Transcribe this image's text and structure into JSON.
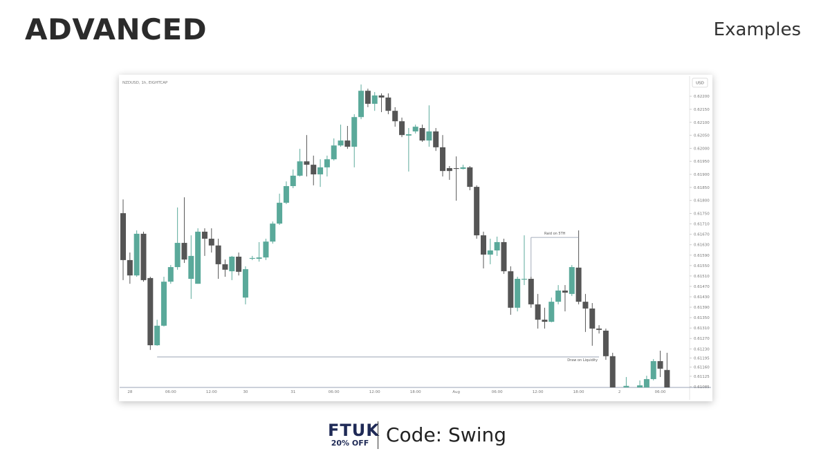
{
  "header": {
    "title": "ADVANCED",
    "subtitle": "Examples"
  },
  "footer": {
    "brand": "FTUK",
    "offer": "20% OFF",
    "code": "Code: Swing"
  },
  "chart_data": {
    "type": "candlestick",
    "title": "NZDUSD, 1h, EIGHTCAP",
    "currency": "USD",
    "colors": {
      "up": "#5aa99a",
      "down": "#555555"
    },
    "categories": [
      null,
      "28",
      null,
      null,
      null,
      null,
      null,
      "06:00",
      null,
      null,
      null,
      null,
      null,
      "12:00",
      null,
      null,
      null,
      null,
      "30",
      null,
      null,
      null,
      null,
      null,
      null,
      "31",
      null,
      null,
      null,
      null,
      null,
      "06:00",
      null,
      null,
      null,
      null,
      null,
      "12:00",
      null,
      null,
      null,
      null,
      null,
      "18:00",
      null,
      null,
      null,
      null,
      null,
      "Aug",
      null,
      null,
      null,
      null,
      null,
      "06:00",
      null,
      null,
      null,
      null,
      null,
      "12:00",
      null,
      null,
      null,
      null,
      null,
      "18:00",
      null,
      null,
      null,
      null,
      null,
      "2",
      null,
      null,
      null,
      null,
      null,
      "06:00",
      null
    ],
    "open": [
      0.61751,
      0.61571,
      0.61512,
      0.61672,
      0.61502,
      0.61244,
      0.61319,
      0.61488,
      0.61544,
      0.61637,
      0.61499,
      0.6148,
      0.6168,
      0.61653,
      0.61627,
      0.61555,
      0.61528,
      0.61584,
      0.61427,
      0.61576,
      0.61576,
      0.61581,
      0.61642,
      0.61711,
      0.61791,
      0.61855,
      0.61895,
      0.6195,
      0.61937,
      0.619,
      0.61927,
      0.61958,
      0.62011,
      0.6203,
      0.62006,
      0.6212,
      0.62221,
      0.62171,
      0.62203,
      0.62195,
      0.62144,
      0.62104,
      0.62049,
      0.62065,
      0.62078,
      0.6203,
      0.62065,
      0.62004,
      0.61924,
      0.61924,
      0.61921,
      0.61927,
      0.61852,
      0.61666,
      0.61592,
      0.61608,
      0.6164,
      0.61528,
      0.61388,
      0.61496,
      0.61499,
      0.61401,
      0.61342,
      0.61334,
      0.61411,
      0.61454,
      0.61441,
      0.61542,
      0.61411,
      0.61385,
      0.61308,
      0.613,
      0.61202,
      null,
      0.61082,
      null,
      0.61082,
      0.61082,
      0.61114,
      0.61183,
      0.61149
    ],
    "high": [
      0.61804,
      0.616,
      0.61685,
      0.6168,
      0.61507,
      0.61342,
      0.61507,
      0.61552,
      0.61773,
      0.61812,
      0.61666,
      0.61693,
      0.61693,
      0.61693,
      0.61653,
      0.61573,
      0.61587,
      0.616,
      0.61547,
      0.61587,
      0.6164,
      0.61653,
      0.61719,
      0.61826,
      0.61873,
      0.61919,
      0.61998,
      0.62051,
      0.61972,
      0.61958,
      0.61972,
      0.62038,
      0.62091,
      0.62086,
      0.62131,
      0.62245,
      0.62229,
      0.62216,
      0.62211,
      0.62211,
      0.62158,
      0.62118,
      0.62078,
      0.62091,
      0.62091,
      0.62165,
      0.62078,
      0.62051,
      0.61932,
      0.61969,
      0.61937,
      0.61932,
      0.61858,
      0.6168,
      0.61653,
      0.61661,
      0.61653,
      0.61547,
      0.61507,
      0.61666,
      0.61507,
      0.61441,
      0.61388,
      0.61427,
      0.61475,
      0.61475,
      0.61552,
      0.61685,
      0.61441,
      0.61406,
      0.61321,
      0.61308,
      0.61215,
      null,
      0.61122,
      null,
      0.61109,
      0.61127,
      0.61191,
      0.61223,
      0.61215
    ],
    "low": [
      0.61494,
      0.6148,
      0.61507,
      0.61488,
      0.61226,
      0.61242,
      0.61316,
      0.6148,
      0.61534,
      0.6156,
      0.61422,
      0.6148,
      0.61587,
      0.616,
      0.61499,
      0.61507,
      0.61494,
      0.61512,
      0.61401,
      0.61571,
      0.61565,
      0.61571,
      0.61634,
      0.61706,
      0.61786,
      0.61847,
      0.61892,
      0.61892,
      0.61858,
      0.61852,
      0.61892,
      0.61953,
      0.62006,
      0.61998,
      0.61927,
      0.62112,
      0.62158,
      0.62144,
      0.62139,
      0.62131,
      0.62083,
      0.62043,
      0.61911,
      0.62057,
      0.62025,
      0.62006,
      0.6199,
      0.61892,
      0.61879,
      0.61799,
      0.61919,
      0.61839,
      0.61653,
      0.61539,
      0.61555,
      0.61587,
      0.61518,
      0.61361,
      0.61374,
      0.61475,
      0.61388,
      0.61308,
      0.61308,
      0.61332,
      0.61401,
      0.61374,
      0.61433,
      0.61401,
      0.61295,
      0.61242,
      0.61289,
      0.61188,
      0.61056,
      null,
      0.61077,
      null,
      0.61077,
      0.61077,
      0.61109,
      0.61122,
      0.61069
    ],
    "close": [
      0.61571,
      0.61512,
      0.61672,
      0.61494,
      0.61244,
      0.61319,
      0.61488,
      0.61544,
      0.61637,
      0.61573,
      0.61587,
      0.6168,
      0.61653,
      0.61627,
      0.61555,
      0.61534,
      0.61584,
      0.61526,
      0.61536,
      0.61579,
      0.61581,
      0.61642,
      0.61711,
      0.61791,
      0.61855,
      0.61895,
      0.6195,
      0.61937,
      0.619,
      0.61927,
      0.61958,
      0.62011,
      0.6203,
      0.62006,
      0.6212,
      0.62221,
      0.62171,
      0.62203,
      0.62195,
      0.62144,
      0.62104,
      0.62051,
      0.62054,
      0.62083,
      0.6203,
      0.62065,
      0.62004,
      0.61913,
      0.61913,
      0.61921,
      0.61927,
      0.61852,
      0.61666,
      0.61592,
      0.61608,
      0.6164,
      0.61528,
      0.61388,
      0.61499,
      0.61499,
      0.61401,
      0.61342,
      0.61334,
      0.61411,
      0.61454,
      0.61446,
      0.61544,
      0.61411,
      0.61385,
      0.61308,
      0.61303,
      0.61202,
      0.61077,
      null,
      0.61088,
      null,
      0.6109,
      0.61114,
      0.61183,
      0.61154,
      0.61082
    ],
    "ylim": [
      0.61082,
      0.62272
    ],
    "yticks": [
      {
        "value": 0.622,
        "label": "0.62200"
      },
      {
        "value": 0.6215,
        "label": "0.62150"
      },
      {
        "value": 0.621,
        "label": "0.62100"
      },
      {
        "value": 0.6205,
        "label": "0.62050"
      },
      {
        "value": 0.62,
        "label": "0.62000"
      },
      {
        "value": 0.6195,
        "label": "0.61950"
      },
      {
        "value": 0.619,
        "label": "0.61900"
      },
      {
        "value": 0.6185,
        "label": "0.61850"
      },
      {
        "value": 0.618,
        "label": "0.61800"
      },
      {
        "value": 0.6175,
        "label": "0.61750"
      },
      {
        "value": 0.6171,
        "label": "0.61710"
      },
      {
        "value": 0.6167,
        "label": "0.61670"
      },
      {
        "value": 0.6163,
        "label": "0.61630"
      },
      {
        "value": 0.6159,
        "label": "0.61590"
      },
      {
        "value": 0.6155,
        "label": "0.61550"
      },
      {
        "value": 0.6151,
        "label": "0.61510"
      },
      {
        "value": 0.6147,
        "label": "0.61470"
      },
      {
        "value": 0.6143,
        "label": "0.61430"
      },
      {
        "value": 0.6139,
        "label": "0.61390"
      },
      {
        "value": 0.6135,
        "label": "0.61350"
      },
      {
        "value": 0.6131,
        "label": "0.61310"
      },
      {
        "value": 0.6127,
        "label": "0.61270"
      },
      {
        "value": 0.6123,
        "label": "0.61230"
      },
      {
        "value": 0.61195,
        "label": "0.61195"
      },
      {
        "value": 0.6116,
        "label": "0.61160"
      },
      {
        "value": 0.61125,
        "label": "0.61125"
      },
      {
        "value": 0.61085,
        "label": "0.61085"
      }
    ],
    "annotations": [
      {
        "text": "Raid on 5TH",
        "value": 0.61658
      },
      {
        "text": "Draw on Liquidity",
        "value": 0.61199
      }
    ]
  }
}
